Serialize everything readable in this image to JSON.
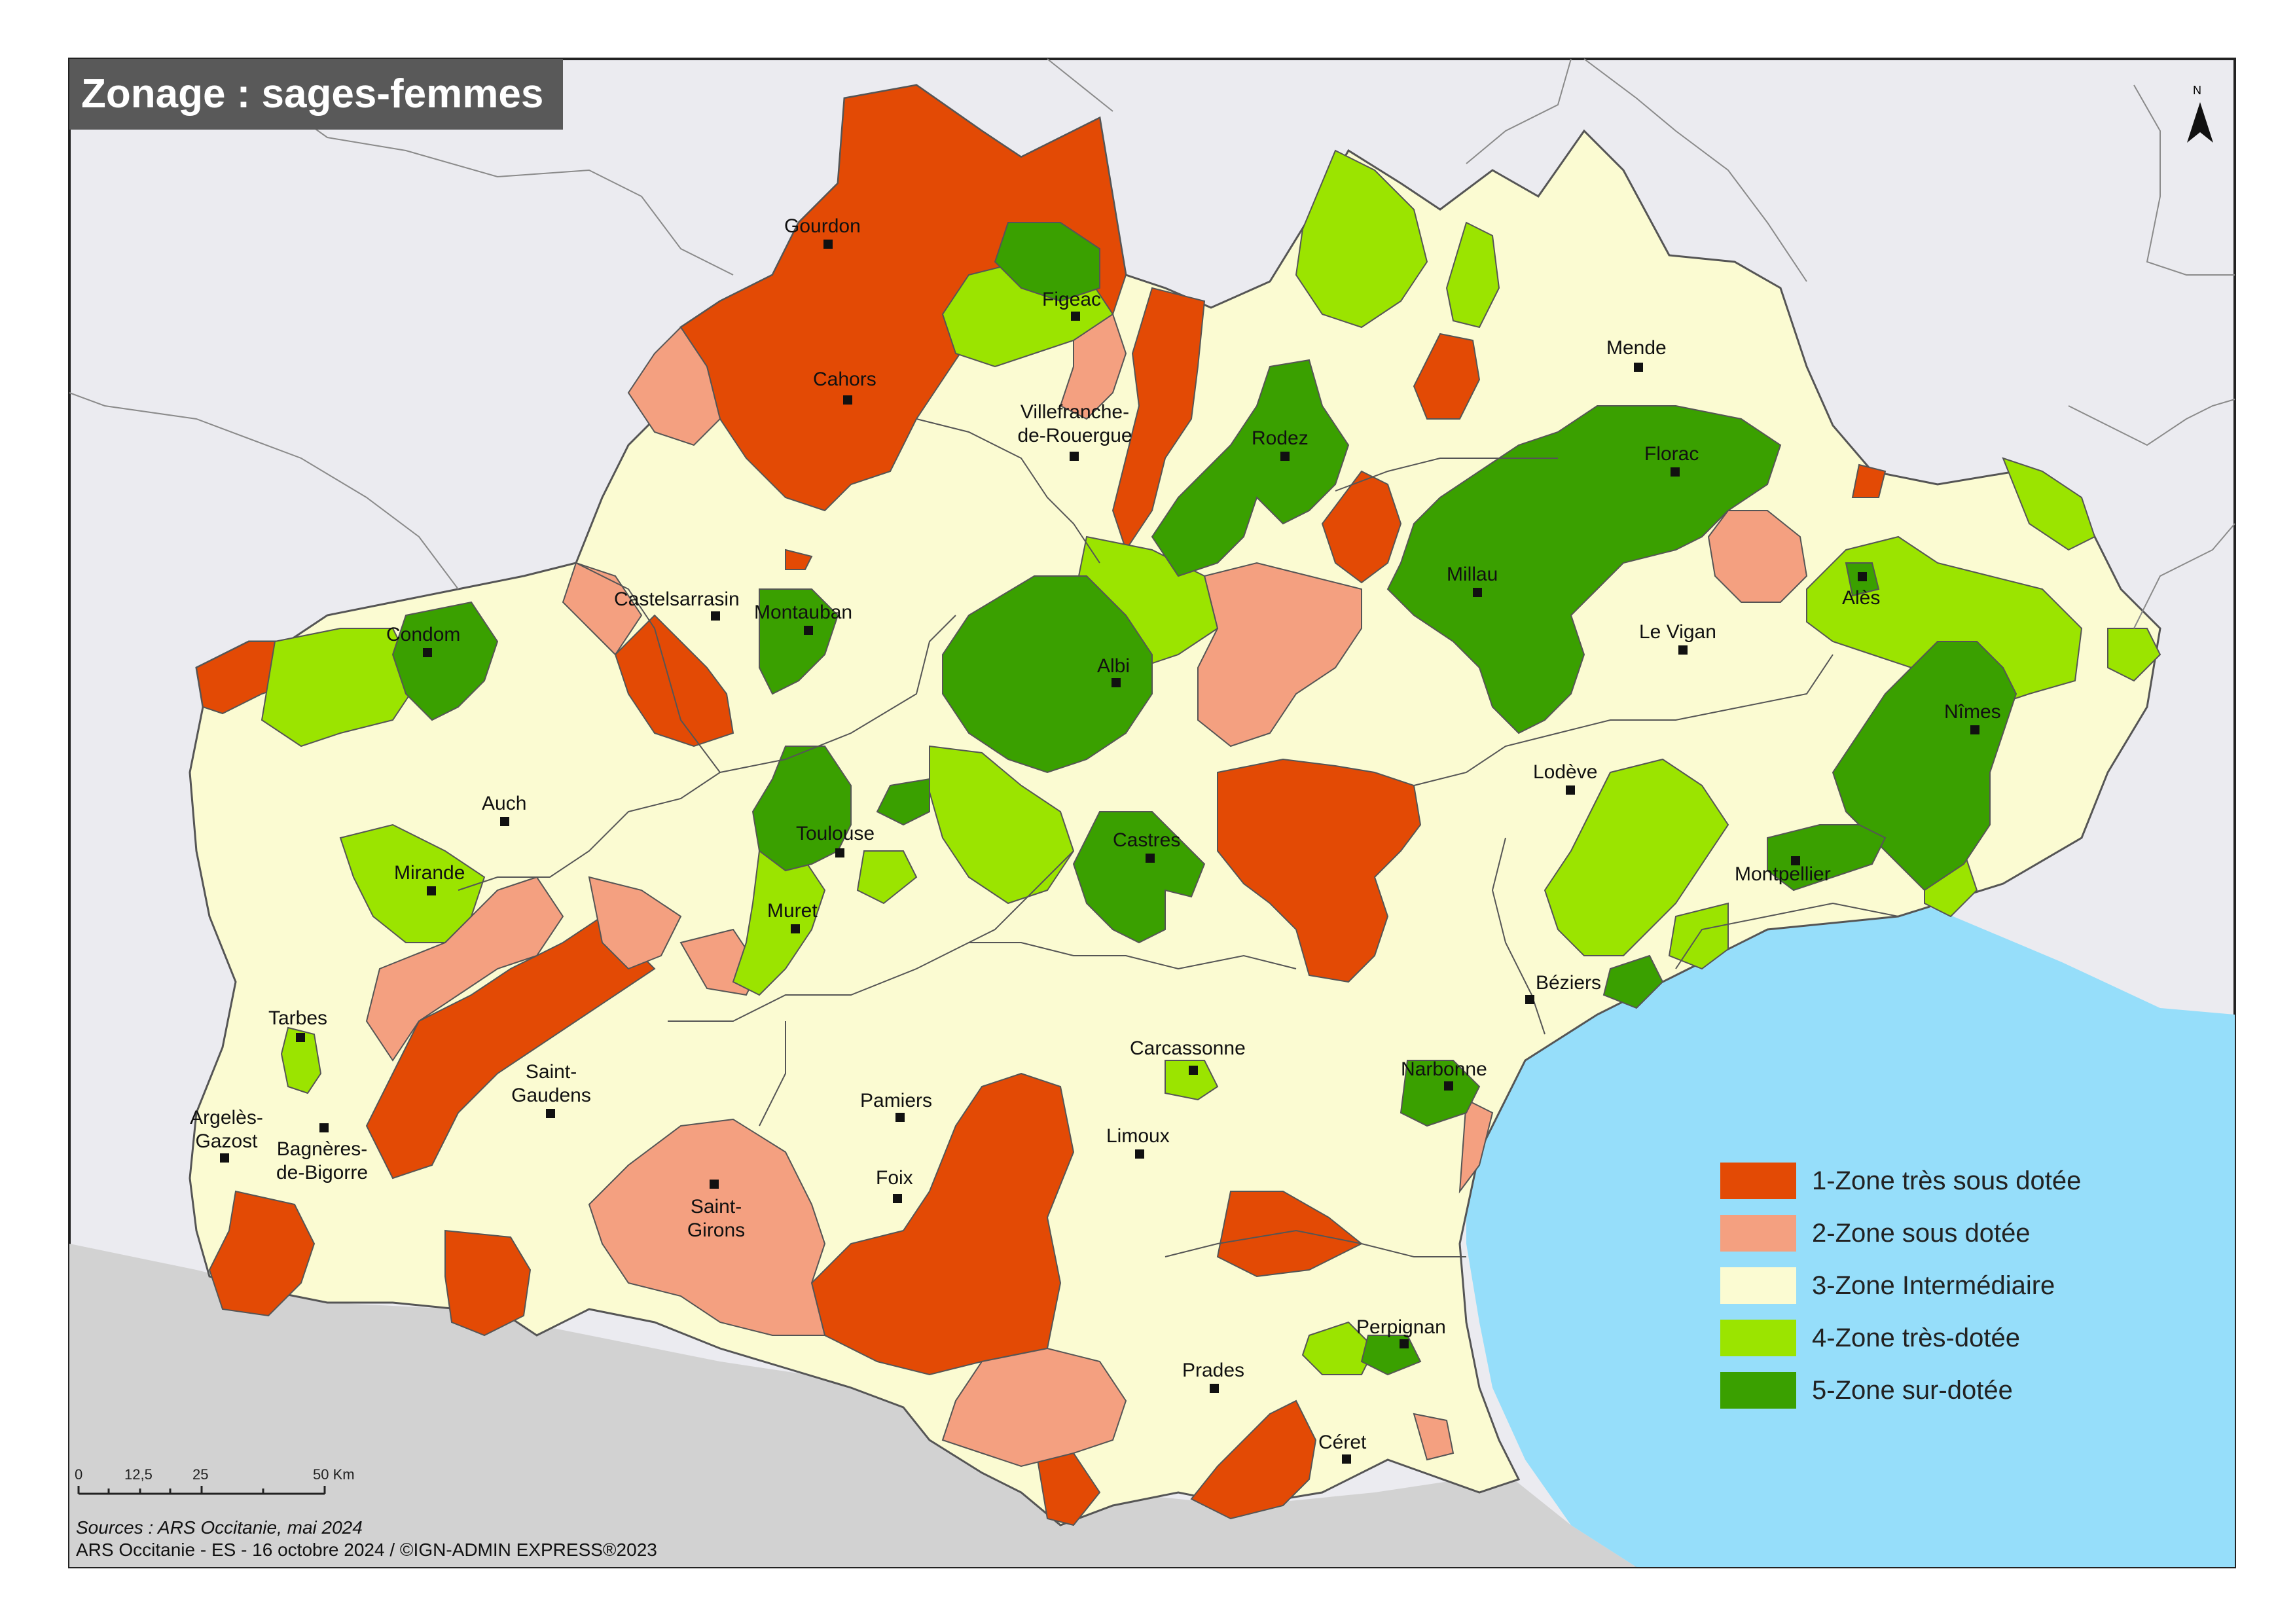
{
  "title": "Zonage : sages-femmes",
  "colors": {
    "zone1": "#E34A05",
    "zone2": "#F4A080",
    "zone3": "#FBFBD2",
    "zone4": "#9BE400",
    "zone5": "#3AA000",
    "sea": "#96DEFA",
    "outside": "#EBEBF0",
    "spain": "#D2D2D2",
    "border": "#555555"
  },
  "legend": [
    {
      "label": "1-Zone très sous dotée",
      "color": "#E34A05"
    },
    {
      "label": "2-Zone sous dotée",
      "color": "#F4A080"
    },
    {
      "label": "3-Zone Intermédiaire",
      "color": "#FBFBD2"
    },
    {
      "label": "4-Zone très-dotée",
      "color": "#9BE400"
    },
    {
      "label": "5-Zone sur-dotée",
      "color": "#3AA000"
    }
  ],
  "cities": [
    {
      "name": "Gourdon"
    },
    {
      "name": "Figeac"
    },
    {
      "name": "Cahors"
    },
    {
      "name": "Villefranche-\nde-Rouergue"
    },
    {
      "name": "Rodez"
    },
    {
      "name": "Mende"
    },
    {
      "name": "Florac"
    },
    {
      "name": "Millau"
    },
    {
      "name": "Alès"
    },
    {
      "name": "Le Vigan"
    },
    {
      "name": "Nîmes"
    },
    {
      "name": "Castelsarrasin"
    },
    {
      "name": "Montauban"
    },
    {
      "name": "Condom"
    },
    {
      "name": "Albi"
    },
    {
      "name": "Lodève"
    },
    {
      "name": "Auch"
    },
    {
      "name": "Toulouse"
    },
    {
      "name": "Castres"
    },
    {
      "name": "Montpellier"
    },
    {
      "name": "Mirande"
    },
    {
      "name": "Muret"
    },
    {
      "name": "Béziers"
    },
    {
      "name": "Tarbes"
    },
    {
      "name": "Carcassonne"
    },
    {
      "name": "Saint-\nGaudens"
    },
    {
      "name": "Narbonne"
    },
    {
      "name": "Argelès-\nGazost"
    },
    {
      "name": "Bagnères-\nde-Bigorre"
    },
    {
      "name": "Pamiers"
    },
    {
      "name": "Limoux"
    },
    {
      "name": "Foix"
    },
    {
      "name": "Saint-\nGirons"
    },
    {
      "name": "Perpignan"
    },
    {
      "name": "Prades"
    },
    {
      "name": "Céret"
    }
  ],
  "scale_bar": {
    "ticks": [
      "0",
      "12,5",
      "25",
      "50 Km"
    ]
  },
  "north_arrow": {
    "label": "N",
    "icon": "north-arrow-icon"
  },
  "footer": {
    "sources": "Sources : ARS Occitanie, mai 2024",
    "credits": "ARS Occitanie - ES - 16 octobre 2024 / ©IGN-ADMIN EXPRESS®2023"
  }
}
